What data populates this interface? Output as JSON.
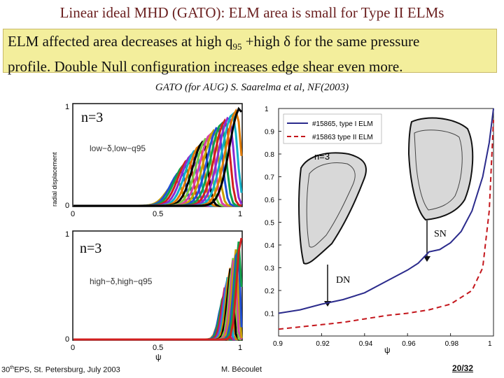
{
  "slide": {
    "title": "Linear ideal MHD (GATO): ELM area is small for Type II ELMs",
    "box_line1_a": "ELM affected area decreases at high q",
    "box_line1_sub": "95",
    "box_line1_b": " +high δ for the same pressure",
    "box_line2": "profile. Double Null configuration increases edge shear even more.",
    "citation": "GATO (for AUG) S. Saarelma et al, NF(2003)"
  },
  "left_top_panel": {
    "ylabel": "radial displacement",
    "mode_label": "n=3",
    "case_label": "low−δ,low−q95",
    "yticks": [
      "1",
      "0"
    ],
    "xticks": [
      "0",
      "0.5",
      "1"
    ]
  },
  "left_bottom_panel": {
    "mode_label": "n=3",
    "case_label": "high−δ,high−q95",
    "yticks": [
      "1",
      "0"
    ],
    "xticks": [
      "0",
      "0.5",
      "1"
    ],
    "xlabel": "ψ"
  },
  "chart_data": {
    "type": "line",
    "title": "",
    "xlabel": "ψ",
    "ylabel": "",
    "xlim": [
      0.9,
      1.0
    ],
    "ylim": [
      0,
      1
    ],
    "x_ticks": [
      "0.9",
      "0.92",
      "0.94",
      "0.96",
      "0.98",
      "1"
    ],
    "y_ticks": [
      "0.1",
      "0.2",
      "0.3",
      "0.4",
      "0.5",
      "0.6",
      "0.7",
      "0.8",
      "0.9",
      "1"
    ],
    "legend_position": "top-left",
    "series": [
      {
        "name": "#15865, type I ELM",
        "color": "#2b2b8c",
        "style": "solid",
        "x": [
          0.9,
          0.91,
          0.92,
          0.93,
          0.94,
          0.95,
          0.96,
          0.965,
          0.97,
          0.975,
          0.98,
          0.985,
          0.99,
          0.995,
          0.998,
          1.0
        ],
        "y": [
          0.1,
          0.115,
          0.14,
          0.16,
          0.19,
          0.24,
          0.29,
          0.32,
          0.37,
          0.38,
          0.41,
          0.46,
          0.55,
          0.7,
          0.85,
          1.0
        ]
      },
      {
        "name": "#15863 type II ELM",
        "color": "#c4161c",
        "style": "dashed",
        "x": [
          0.9,
          0.91,
          0.92,
          0.93,
          0.94,
          0.95,
          0.96,
          0.97,
          0.98,
          0.99,
          0.995,
          0.998,
          1.0
        ],
        "y": [
          0.03,
          0.04,
          0.05,
          0.06,
          0.075,
          0.09,
          0.1,
          0.115,
          0.14,
          0.2,
          0.3,
          0.55,
          0.95
        ]
      }
    ],
    "annotations": [
      "n=3",
      "SN",
      "DN"
    ]
  },
  "footer": {
    "left_a": "30",
    "left_sup": "th",
    "left_b": "EPS, St. Petersburg, July 2003",
    "middle": "M. Bécoulet",
    "right": "20/32"
  },
  "colors": {
    "title": "#6a1f1f",
    "box_fill": "#f3ee9c",
    "curve_palette": [
      "#c8a000",
      "#1f4fd6",
      "#11a04a",
      "#d21f1f",
      "#8a2bd1",
      "#11b0c8",
      "#e07a00",
      "#000000",
      "#7ac943",
      "#d93ea8"
    ]
  }
}
